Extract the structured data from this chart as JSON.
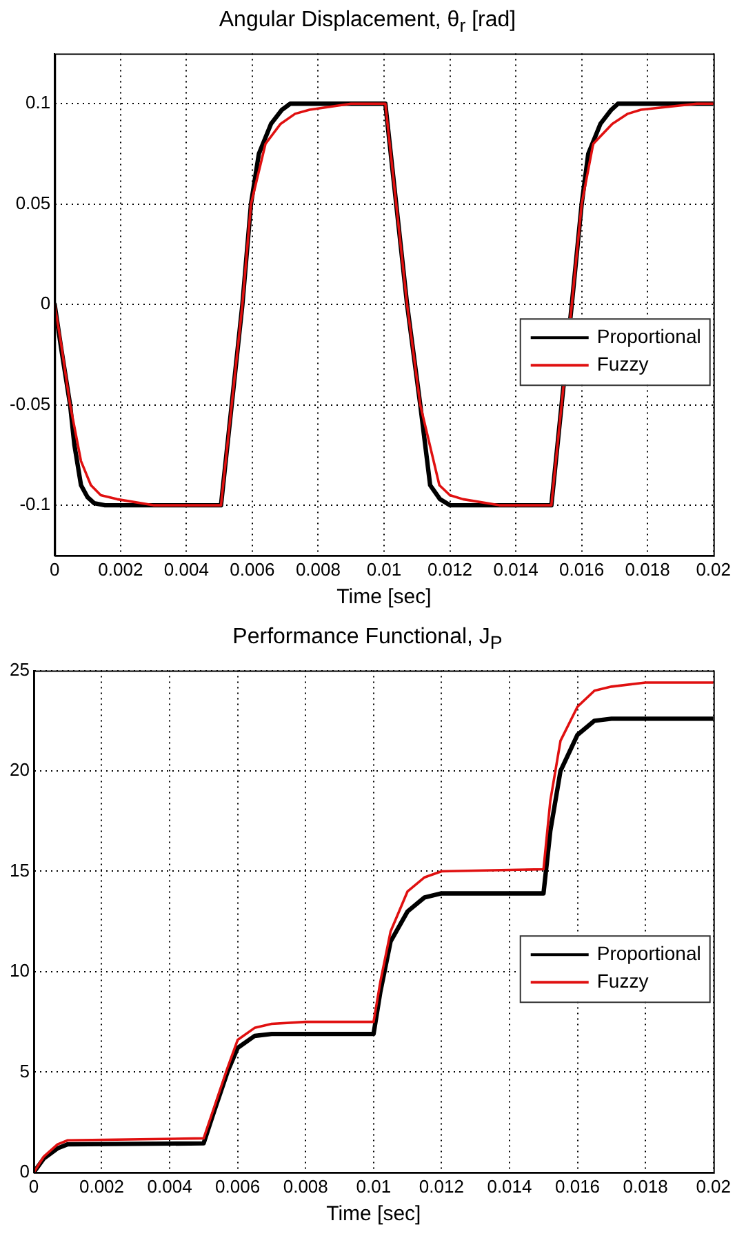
{
  "chart_data": [
    {
      "type": "line",
      "title": "Angular Displacement, θ$_{r}$ [rad]",
      "xlabel": "Time [sec]",
      "xlim": [
        0,
        0.02
      ],
      "xticks": [
        0,
        0.002,
        0.004,
        0.006,
        0.008,
        0.01,
        0.012,
        0.014,
        0.016,
        0.018,
        0.02
      ],
      "ylim": [
        -0.125,
        0.125
      ],
      "yticks": [
        -0.1,
        -0.05,
        0,
        0.05,
        0.1
      ],
      "grid": true,
      "legend": "right",
      "line_style": "solid",
      "marker": "none",
      "series": [
        {
          "name": "Proportional",
          "color": "#000000",
          "x": [
            0,
            0.0002,
            0.00047,
            0.0006,
            0.0008,
            0.001,
            0.0012,
            0.00153,
            0.00505,
            0.0057,
            0.00596,
            0.0062,
            0.00657,
            0.0069,
            0.00715,
            0.01004,
            0.0107,
            0.0111,
            0.0114,
            0.0117,
            0.012,
            0.015,
            0.01508,
            0.0157,
            0.016,
            0.0162,
            0.01657,
            0.0169,
            0.0171,
            0.02
          ],
          "values": [
            0,
            -0.022,
            -0.05,
            -0.07,
            -0.09,
            -0.096,
            -0.099,
            -0.1,
            -0.1,
            0,
            0.05,
            0.075,
            0.09,
            0.097,
            0.1,
            0.1,
            0,
            -0.05,
            -0.09,
            -0.097,
            -0.1,
            -0.1,
            -0.1,
            0,
            0.05,
            0.075,
            0.09,
            0.097,
            0.1,
            0.1
          ]
        },
        {
          "name": "Fuzzy",
          "color": "#e01010",
          "x": [
            0,
            0.0002,
            0.00047,
            0.0008,
            0.0011,
            0.0014,
            0.0019,
            0.003,
            0.00505,
            0.0057,
            0.00596,
            0.0064,
            0.00686,
            0.0073,
            0.00774,
            0.009,
            0.01004,
            0.0107,
            0.0111,
            0.01168,
            0.012,
            0.0124,
            0.0135,
            0.015,
            0.01508,
            0.0157,
            0.016,
            0.01635,
            0.01693,
            0.0174,
            0.0178,
            0.0195,
            0.02
          ],
          "values": [
            0,
            -0.02,
            -0.05,
            -0.078,
            -0.09,
            -0.095,
            -0.097,
            -0.1,
            -0.1,
            0,
            0.05,
            0.08,
            0.09,
            0.095,
            0.097,
            0.1,
            0.1,
            0,
            -0.05,
            -0.09,
            -0.095,
            -0.097,
            -0.1,
            -0.1,
            -0.1,
            0,
            0.05,
            0.08,
            0.09,
            0.095,
            0.097,
            0.1,
            0.1
          ]
        }
      ]
    },
    {
      "type": "line",
      "title": "Performance Functional, J$_{P}$",
      "xlabel": "Time [sec]",
      "xlim": [
        0,
        0.02
      ],
      "xticks": [
        0,
        0.002,
        0.004,
        0.006,
        0.008,
        0.01,
        0.012,
        0.014,
        0.016,
        0.018,
        0.02
      ],
      "ylim": [
        0,
        25
      ],
      "yticks": [
        0,
        5,
        10,
        15,
        20,
        25
      ],
      "grid": true,
      "legend": "right",
      "line_style": "solid",
      "marker": "none",
      "series": [
        {
          "name": "Proportional",
          "color": "#000000",
          "x": [
            0,
            0.0003,
            0.0007,
            0.001,
            0.005,
            0.0053,
            0.0057,
            0.006,
            0.0065,
            0.007,
            0.01,
            0.0102,
            0.0105,
            0.011,
            0.0115,
            0.012,
            0.015,
            0.0152,
            0.0155,
            0.016,
            0.0165,
            0.017,
            0.02
          ],
          "values": [
            0,
            0.7,
            1.2,
            1.4,
            1.45,
            3,
            5,
            6.2,
            6.8,
            6.9,
            6.9,
            9,
            11.5,
            13,
            13.7,
            13.9,
            13.9,
            17,
            20,
            21.8,
            22.5,
            22.6,
            22.6
          ]
        },
        {
          "name": "Fuzzy",
          "color": "#e01010",
          "x": [
            0,
            0.0003,
            0.0007,
            0.001,
            0.005,
            0.0053,
            0.0057,
            0.006,
            0.0065,
            0.007,
            0.008,
            0.01,
            0.0102,
            0.0105,
            0.011,
            0.0115,
            0.012,
            0.015,
            0.0152,
            0.0155,
            0.016,
            0.0165,
            0.017,
            0.018,
            0.02
          ],
          "values": [
            0,
            0.8,
            1.4,
            1.6,
            1.7,
            3.2,
            5.2,
            6.6,
            7.2,
            7.4,
            7.5,
            7.5,
            9.5,
            12,
            14,
            14.7,
            15,
            15.1,
            18.5,
            21.5,
            23.2,
            24,
            24.2,
            24.4,
            24.4
          ]
        }
      ]
    }
  ]
}
